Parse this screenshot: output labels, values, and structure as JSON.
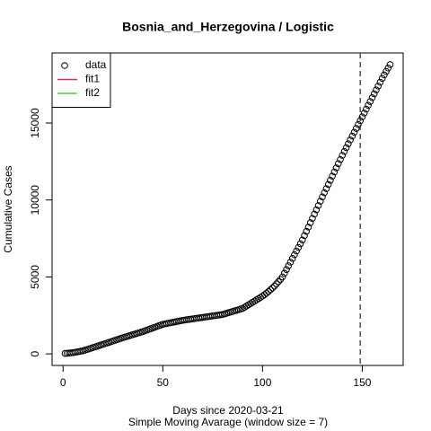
{
  "chart_data": {
    "type": "scatter",
    "title": "Bosnia_and_Herzegovina / Logistic",
    "xlabel": "Days since 2020-03-21",
    "subtitle": "Simple Moving Avarage (window size = 7)",
    "ylabel": "Cumulative Cases",
    "x": [
      1,
      2,
      3,
      4,
      5,
      6,
      7,
      8,
      9,
      10,
      11,
      12,
      13,
      14,
      15,
      16,
      17,
      18,
      19,
      20,
      21,
      22,
      23,
      24,
      25,
      26,
      27,
      28,
      29,
      30,
      31,
      32,
      33,
      34,
      35,
      36,
      37,
      38,
      39,
      40,
      41,
      42,
      43,
      44,
      45,
      46,
      47,
      48,
      49,
      50,
      51,
      52,
      53,
      54,
      55,
      56,
      57,
      58,
      59,
      60,
      61,
      62,
      63,
      64,
      65,
      66,
      67,
      68,
      69,
      70,
      71,
      72,
      73,
      74,
      75,
      76,
      77,
      78,
      79,
      80,
      81,
      82,
      83,
      84,
      85,
      86,
      87,
      88,
      89,
      90,
      91,
      92,
      93,
      94,
      95,
      96,
      97,
      98,
      99,
      100,
      101,
      102,
      103,
      104,
      105,
      106,
      107,
      108,
      109,
      110,
      111,
      112,
      113,
      114,
      115,
      116,
      117,
      118,
      119,
      120,
      121,
      122,
      123,
      124,
      125,
      126,
      127,
      128,
      129,
      130,
      131,
      132,
      133,
      134,
      135,
      136,
      137,
      138,
      139,
      140,
      141,
      142,
      143,
      144,
      145,
      146,
      147,
      148,
      149,
      150,
      151,
      152,
      153,
      154,
      155,
      156,
      157,
      158,
      159,
      160,
      161,
      162,
      163,
      164
    ],
    "series": [
      {
        "name": "data",
        "color": "#000000",
        "values": [
          30,
          42,
          55,
          67,
          80,
          104,
          128,
          152,
          176,
          200,
          242,
          284,
          326,
          368,
          410,
          452,
          494,
          536,
          578,
          620,
          663,
          706,
          749,
          792,
          835,
          878,
          921,
          964,
          1007,
          1050,
          1090,
          1130,
          1170,
          1210,
          1250,
          1290,
          1330,
          1370,
          1410,
          1450,
          1497,
          1544,
          1591,
          1638,
          1685,
          1732,
          1779,
          1826,
          1873,
          1920,
          1946,
          1972,
          1998,
          2024,
          2050,
          2076,
          2102,
          2128,
          2154,
          2180,
          2199,
          2218,
          2237,
          2256,
          2275,
          2294,
          2313,
          2332,
          2351,
          2370,
          2389,
          2408,
          2427,
          2446,
          2465,
          2484,
          2503,
          2522,
          2541,
          2560,
          2599,
          2638,
          2677,
          2716,
          2755,
          2794,
          2833,
          2872,
          2911,
          2950,
          3030,
          3110,
          3190,
          3270,
          3350,
          3430,
          3510,
          3590,
          3670,
          3750,
          3845,
          3945,
          4050,
          4165,
          4285,
          4410,
          4545,
          4690,
          4840,
          5000,
          5240,
          5480,
          5720,
          5960,
          6200,
          6440,
          6680,
          6920,
          7160,
          7400,
          7680,
          7960,
          8240,
          8520,
          8800,
          9080,
          9360,
          9640,
          9920,
          10200,
          10470,
          10740,
          11010,
          11280,
          11550,
          11820,
          12090,
          12360,
          12630,
          12900,
          13150,
          13400,
          13650,
          13900,
          14150,
          14400,
          14650,
          14900,
          15150,
          15400,
          15650,
          15900,
          16150,
          16400,
          16650,
          16900,
          17150,
          17400,
          17650,
          17900,
          18125,
          18350,
          18575,
          18800
        ]
      }
    ],
    "legend_lines": [
      {
        "name": "fit1",
        "color": "#df2a5b"
      },
      {
        "name": "fit2",
        "color": "#61c04f"
      }
    ],
    "legend": "top-left",
    "vline": 149,
    "xlim": [
      -5.52,
      170.52
    ],
    "xticks": [
      0,
      50,
      100,
      150
    ],
    "ylim": [
      -752,
      19552
    ],
    "yticks": [
      0,
      5000,
      10000,
      15000
    ]
  }
}
